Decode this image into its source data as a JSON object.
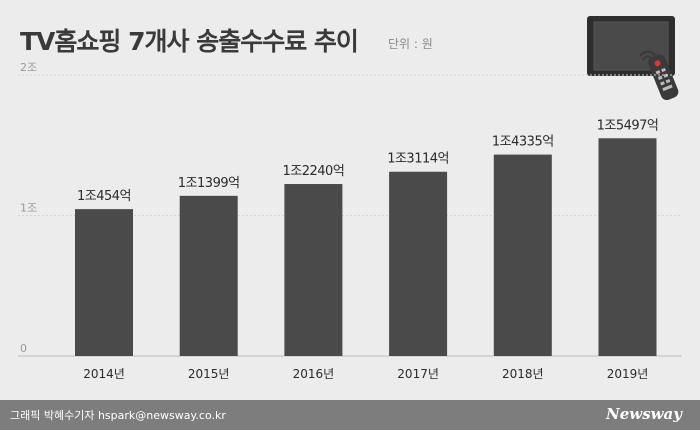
{
  "header": {
    "title": "TV홈쇼핑 7개사 송출수수료 추이",
    "unit": "단위 : 원"
  },
  "footer": {
    "credit": "그래픽 박혜수기자 hspark@newsway.co.kr",
    "brand": "Newsway"
  },
  "colors": {
    "bar": "#4a4a4a",
    "background": "#ececec",
    "grid": "#d4d4d4",
    "footer": "#7d7d7d"
  },
  "chart_data": {
    "type": "bar",
    "title": "TV홈쇼핑 7개사 송출수수료 추이",
    "categories": [
      "2014년",
      "2015년",
      "2016년",
      "2017년",
      "2018년",
      "2019년"
    ],
    "values": [
      10454,
      11399,
      12240,
      13114,
      14335,
      15497
    ],
    "value_unit": "억 원",
    "data_labels": [
      "1조454억",
      "1조1399억",
      "1조2240억",
      "1조3114억",
      "1조4335억",
      "1조5497억"
    ],
    "y_ticks": [
      {
        "value": 0,
        "label": "0"
      },
      {
        "value": 10000,
        "label": "1조"
      },
      {
        "value": 20000,
        "label": "2조"
      }
    ],
    "ylim": [
      0,
      20000
    ],
    "grid": true
  }
}
